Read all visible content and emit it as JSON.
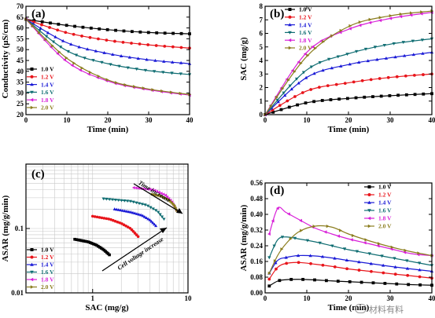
{
  "chart_data": [
    {
      "panel": "(a)",
      "type": "line",
      "xlabel": "Time (min)",
      "ylabel": "Conductivity (μS/cm)",
      "xlim": [
        0,
        40
      ],
      "ylim": [
        20,
        70
      ],
      "xticks": [
        0,
        10,
        20,
        30,
        40
      ],
      "yticks": [
        20,
        25,
        30,
        35,
        40,
        45,
        50,
        55,
        60,
        65,
        70
      ],
      "legend": "bottom-left",
      "x": [
        0,
        10,
        20,
        30,
        40
      ],
      "series": [
        {
          "name": "1.0 V",
          "color": "#000000",
          "marker": "square",
          "values": [
            64,
            61.2,
            59.2,
            57.9,
            57.3
          ]
        },
        {
          "name": "1.2 V",
          "color": "#e8151b",
          "marker": "circle",
          "values": [
            64,
            57.8,
            54.3,
            52.2,
            50.7
          ]
        },
        {
          "name": "1.4 V",
          "color": "#1a1ad6",
          "marker": "triangle-up",
          "values": [
            64,
            53.2,
            48.2,
            45.3,
            43.5
          ]
        },
        {
          "name": "1.6 V",
          "color": "#0f6d72",
          "marker": "triangle-down",
          "values": [
            64,
            49.5,
            43.5,
            40.3,
            38.5
          ]
        },
        {
          "name": "1.8 V",
          "color": "#d81fd8",
          "marker": "triangle-left",
          "values": [
            64,
            44.5,
            35.5,
            31.5,
            29.0
          ]
        },
        {
          "name": "2.0 V",
          "color": "#8b7d1e",
          "marker": "triangle-right",
          "values": [
            64,
            46.0,
            36.0,
            31.8,
            29.3
          ]
        }
      ]
    },
    {
      "panel": "(b)",
      "type": "line",
      "xlabel": "Time (min)",
      "ylabel": "SAC (mg/g)",
      "xlim": [
        0,
        40
      ],
      "ylim": [
        0,
        8
      ],
      "xticks": [
        0,
        10,
        20,
        30,
        40
      ],
      "yticks": [
        0,
        1,
        2,
        3,
        4,
        5,
        6,
        7,
        8
      ],
      "legend": "top-left",
      "x": [
        0,
        10,
        20,
        30,
        40
      ],
      "series": [
        {
          "name": "1.0 V",
          "color": "#000000",
          "marker": "square",
          "values": [
            0,
            0.88,
            1.2,
            1.4,
            1.55
          ]
        },
        {
          "name": "1.2 V",
          "color": "#e8151b",
          "marker": "circle",
          "values": [
            0,
            1.75,
            2.35,
            2.75,
            3.0
          ]
        },
        {
          "name": "1.4 V",
          "color": "#1a1ad6",
          "marker": "triangle-up",
          "values": [
            0,
            2.75,
            3.7,
            4.2,
            4.6
          ]
        },
        {
          "name": "1.6 V",
          "color": "#0f6d72",
          "marker": "triangle-down",
          "values": [
            0,
            3.3,
            4.5,
            5.2,
            5.6
          ]
        },
        {
          "name": "1.8 V",
          "color": "#d81fd8",
          "marker": "triangle-left",
          "values": [
            0,
            4.6,
            6.3,
            7.1,
            7.55
          ]
        },
        {
          "name": "2.0 V",
          "color": "#8b7d1e",
          "marker": "triangle-right",
          "values": [
            0,
            4.3,
            6.5,
            7.3,
            7.65
          ]
        }
      ]
    },
    {
      "panel": "(c)",
      "type": "line",
      "scale": "log-log",
      "xlabel": "SAC (mg/g)",
      "ylabel": "ASAR (mg/g/min)",
      "xlim": [
        0.2,
        10
      ],
      "ylim": [
        0.01,
        1
      ],
      "xtick_labels": [
        {
          "value": 1,
          "label": "1"
        },
        {
          "value": 10,
          "label": "10"
        }
      ],
      "ytick_labels": [
        {
          "value": 0.01,
          "label": "0.01"
        },
        {
          "value": 0.1,
          "label": "0.1"
        }
      ],
      "grid": true,
      "legend": "bottom-left",
      "annotations": [
        "Time increase",
        "Cell voltage increase"
      ],
      "series": [
        {
          "name": "1.0 V",
          "color": "#000000",
          "marker": "square",
          "x": [
            0.65,
            0.9,
            1.1,
            1.3,
            1.5
          ],
          "y": [
            0.068,
            0.062,
            0.055,
            0.047,
            0.039
          ]
        },
        {
          "name": "1.2 V",
          "color": "#e8151b",
          "marker": "circle",
          "x": [
            1.0,
            1.5,
            2.0,
            2.5,
            3.0
          ],
          "y": [
            0.155,
            0.14,
            0.12,
            0.1,
            0.075
          ]
        },
        {
          "name": "1.4 V",
          "color": "#1a1ad6",
          "marker": "triangle-up",
          "x": [
            1.7,
            2.5,
            3.3,
            4.0,
            4.6
          ],
          "y": [
            0.2,
            0.18,
            0.16,
            0.135,
            0.11
          ]
        },
        {
          "name": "1.6 V",
          "color": "#0f6d72",
          "marker": "triangle-down",
          "x": [
            1.3,
            2.5,
            3.7,
            4.8,
            5.6
          ],
          "y": [
            0.29,
            0.265,
            0.23,
            0.185,
            0.14
          ]
        },
        {
          "name": "1.8 V",
          "color": "#d81fd8",
          "marker": "triangle-left",
          "x": [
            2.7,
            4.3,
            5.8,
            6.8,
            7.55
          ],
          "y": [
            0.43,
            0.4,
            0.33,
            0.26,
            0.19
          ]
        },
        {
          "name": "2.0 V",
          "color": "#8b7d1e",
          "marker": "triangle-right",
          "x": [
            4.2,
            5.2,
            6.3,
            7.2,
            7.65
          ],
          "y": [
            0.34,
            0.32,
            0.28,
            0.23,
            0.19
          ]
        }
      ]
    },
    {
      "panel": "(d)",
      "type": "line",
      "xlabel": "Time (min)",
      "ylabel": "ASAR (mg/g/min)",
      "xlim": [
        0,
        40
      ],
      "ylim": [
        0,
        0.56
      ],
      "xticks": [
        0,
        10,
        20,
        30,
        40
      ],
      "yticks": [
        0.0,
        0.08,
        0.16,
        0.24,
        0.32,
        0.4,
        0.48,
        0.56
      ],
      "legend": "top-right",
      "x": [
        1,
        3,
        5,
        8,
        12,
        16,
        20,
        25,
        30,
        35,
        40
      ],
      "series": [
        {
          "name": "1.0 V",
          "color": "#000000",
          "marker": "square",
          "values": [
            0.035,
            0.06,
            0.067,
            0.069,
            0.066,
            0.061,
            0.057,
            0.052,
            0.047,
            0.042,
            0.039
          ]
        },
        {
          "name": "1.2 V",
          "color": "#e8151b",
          "marker": "circle",
          "values": [
            0.07,
            0.13,
            0.15,
            0.155,
            0.146,
            0.135,
            0.122,
            0.11,
            0.098,
            0.087,
            0.075
          ]
        },
        {
          "name": "1.4 V",
          "color": "#1a1ad6",
          "marker": "triangle-up",
          "values": [
            0.1,
            0.165,
            0.18,
            0.19,
            0.188,
            0.178,
            0.165,
            0.15,
            0.135,
            0.122,
            0.11
          ]
        },
        {
          "name": "1.6 V",
          "color": "#0f6d72",
          "marker": "triangle-down",
          "values": [
            0.18,
            0.27,
            0.285,
            0.275,
            0.26,
            0.24,
            0.22,
            0.2,
            0.18,
            0.16,
            0.14
          ]
        },
        {
          "name": "1.8 V",
          "color": "#d81fd8",
          "marker": "triangle-left",
          "values": [
            0.3,
            0.43,
            0.41,
            0.375,
            0.33,
            0.3,
            0.275,
            0.25,
            0.225,
            0.2,
            0.19
          ]
        },
        {
          "name": "2.0 V",
          "color": "#8b7d1e",
          "marker": "triangle-right",
          "values": [
            0.1,
            0.19,
            0.25,
            0.31,
            0.34,
            0.335,
            0.3,
            0.265,
            0.235,
            0.21,
            0.19
          ]
        }
      ]
    }
  ],
  "watermark": {
    "text": "材料有料",
    "icon": "wechat-icon"
  }
}
